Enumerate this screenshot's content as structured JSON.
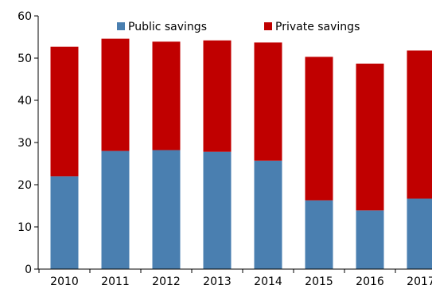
{
  "chart_data": {
    "type": "bar",
    "stacked": true,
    "categories": [
      "2010",
      "2011",
      "2012",
      "2013",
      "2014",
      "2015",
      "2016",
      "2017"
    ],
    "series": [
      {
        "name": "Public savings",
        "color": "#4a7fb0",
        "values": [
          22,
          28,
          28.2,
          27.8,
          25.7,
          16.3,
          13.9,
          16.7
        ]
      },
      {
        "name": "Private savings",
        "color": "#c00000",
        "values": [
          30.7,
          26.6,
          25.7,
          26.4,
          28,
          34,
          34.8,
          35.1
        ]
      }
    ],
    "ylim": [
      0,
      60
    ],
    "yticks": [
      0,
      10,
      20,
      30,
      40,
      50,
      60
    ],
    "grid": false,
    "legend_placement": "top-center"
  }
}
